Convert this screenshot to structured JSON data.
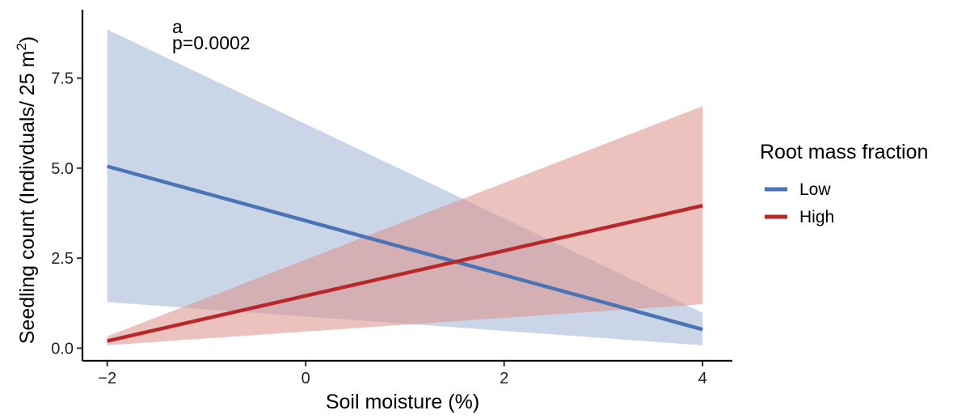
{
  "chart_data": {
    "type": "line",
    "xlabel": "Soil moisture (%)",
    "ylabel_main": "Seedling count (Indivduals/ 25 m",
    "ylabel_sup": "2",
    "ylabel_close": ")",
    "xlim": [
      -2.25,
      4.3
    ],
    "ylim": [
      -0.35,
      9.4
    ],
    "x_ticks": [
      -2,
      0,
      2,
      4
    ],
    "x_tick_labels": [
      "−2",
      "0",
      "2",
      "4"
    ],
    "y_ticks": [
      0,
      2.5,
      5,
      7.5
    ],
    "y_tick_labels": [
      "0.0",
      "2.5",
      "5.0",
      "7.5"
    ],
    "annotation_letter": "a",
    "annotation_p": "p=0.0002",
    "legend": {
      "title": "Root mass fraction",
      "position": "right"
    },
    "series": [
      {
        "name": "Low",
        "color": "#4a74b4",
        "band_color": "#9fb4d6",
        "x": [
          -2,
          4
        ],
        "y": [
          5.05,
          0.52
        ],
        "ci_lower": [
          1.28,
          0.08
        ],
        "ci_upper": [
          8.85,
          0.98
        ]
      },
      {
        "name": "High",
        "color": "#b8282a",
        "band_color": "#dc8f89",
        "x": [
          -2,
          4
        ],
        "y": [
          0.2,
          3.96
        ],
        "ci_lower": [
          0.08,
          1.22
        ],
        "ci_upper": [
          0.33,
          6.72
        ]
      }
    ]
  }
}
